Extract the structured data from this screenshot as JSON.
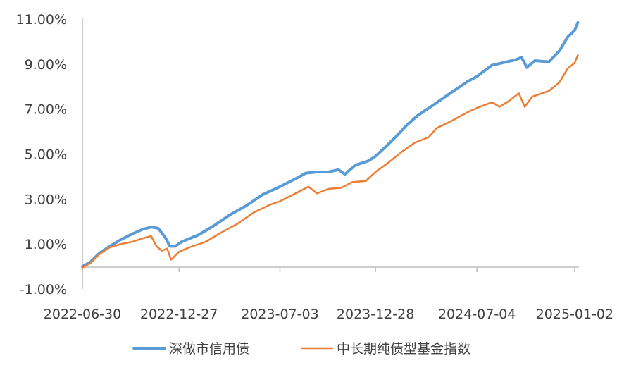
{
  "chart_data": {
    "type": "line",
    "title": "",
    "xlabel": "",
    "ylabel": "",
    "x_tick_labels": [
      "2022-06-30",
      "2022-12-27",
      "2023-07-03",
      "2023-12-28",
      "2024-07-04",
      "2025-01-02"
    ],
    "y_tick_labels": [
      "11.00%",
      "9.00%",
      "7.00%",
      "5.00%",
      "3.00%",
      "1.00%",
      "-1.00%"
    ],
    "y_ticks": [
      11,
      9,
      7,
      5,
      3,
      1,
      -1
    ],
    "ylim": [
      -1,
      11
    ],
    "xlim": [
      "2022-06-30",
      "2025-01-10"
    ],
    "grid": false,
    "legend_position": "bottom",
    "series": [
      {
        "name": "深做市信用债",
        "color": "#5b9bd5",
        "points": [
          [
            "2022-06-30",
            0.0
          ],
          [
            "2022-07-15",
            0.2
          ],
          [
            "2022-08-01",
            0.6
          ],
          [
            "2022-08-20",
            0.9
          ],
          [
            "2022-09-10",
            1.2
          ],
          [
            "2022-10-01",
            1.45
          ],
          [
            "2022-10-20",
            1.65
          ],
          [
            "2022-11-05",
            1.75
          ],
          [
            "2022-11-18",
            1.7
          ],
          [
            "2022-12-01",
            1.3
          ],
          [
            "2022-12-10",
            0.9
          ],
          [
            "2022-12-20",
            0.9
          ],
          [
            "2023-01-01",
            1.1
          ],
          [
            "2023-02-01",
            1.4
          ],
          [
            "2023-03-01",
            1.8
          ],
          [
            "2023-04-01",
            2.3
          ],
          [
            "2023-05-01",
            2.7
          ],
          [
            "2023-06-01",
            3.2
          ],
          [
            "2023-07-03",
            3.55
          ],
          [
            "2023-08-01",
            3.9
          ],
          [
            "2023-08-20",
            4.15
          ],
          [
            "2023-09-10",
            4.2
          ],
          [
            "2023-10-01",
            4.2
          ],
          [
            "2023-10-20",
            4.3
          ],
          [
            "2023-11-01",
            4.1
          ],
          [
            "2023-11-20",
            4.5
          ],
          [
            "2023-12-15",
            4.7
          ],
          [
            "2023-12-28",
            4.9
          ],
          [
            "2024-01-15",
            5.3
          ],
          [
            "2024-02-05",
            5.8
          ],
          [
            "2024-02-25",
            6.3
          ],
          [
            "2024-03-15",
            6.7
          ],
          [
            "2024-04-15",
            7.2
          ],
          [
            "2024-05-15",
            7.7
          ],
          [
            "2024-06-15",
            8.2
          ],
          [
            "2024-07-04",
            8.45
          ],
          [
            "2024-08-01",
            8.95
          ],
          [
            "2024-08-20",
            9.05
          ],
          [
            "2024-09-15",
            9.2
          ],
          [
            "2024-09-25",
            9.3
          ],
          [
            "2024-10-05",
            8.85
          ],
          [
            "2024-10-20",
            9.15
          ],
          [
            "2024-11-15",
            9.1
          ],
          [
            "2024-12-05",
            9.6
          ],
          [
            "2024-12-20",
            10.2
          ],
          [
            "2025-01-02",
            10.5
          ],
          [
            "2025-01-08",
            10.85
          ]
        ]
      },
      {
        "name": "中长期纯债型基金指数",
        "color": "#ed7d31",
        "points": [
          [
            "2022-06-30",
            -0.05
          ],
          [
            "2022-07-15",
            0.15
          ],
          [
            "2022-08-01",
            0.55
          ],
          [
            "2022-08-20",
            0.85
          ],
          [
            "2022-09-10",
            1.0
          ],
          [
            "2022-10-01",
            1.1
          ],
          [
            "2022-10-20",
            1.25
          ],
          [
            "2022-11-05",
            1.35
          ],
          [
            "2022-11-15",
            0.9
          ],
          [
            "2022-11-25",
            0.7
          ],
          [
            "2022-12-05",
            0.8
          ],
          [
            "2022-12-12",
            0.3
          ],
          [
            "2022-12-27",
            0.65
          ],
          [
            "2023-01-15",
            0.85
          ],
          [
            "2023-02-15",
            1.1
          ],
          [
            "2023-03-15",
            1.5
          ],
          [
            "2023-04-15",
            1.9
          ],
          [
            "2023-05-15",
            2.4
          ],
          [
            "2023-06-15",
            2.75
          ],
          [
            "2023-07-03",
            2.9
          ],
          [
            "2023-08-01",
            3.25
          ],
          [
            "2023-08-25",
            3.55
          ],
          [
            "2023-09-10",
            3.25
          ],
          [
            "2023-10-01",
            3.45
          ],
          [
            "2023-10-25",
            3.5
          ],
          [
            "2023-11-15",
            3.75
          ],
          [
            "2023-12-10",
            3.8
          ],
          [
            "2023-12-28",
            4.2
          ],
          [
            "2024-01-20",
            4.6
          ],
          [
            "2024-02-15",
            5.1
          ],
          [
            "2024-03-10",
            5.5
          ],
          [
            "2024-04-05",
            5.75
          ],
          [
            "2024-04-20",
            6.15
          ],
          [
            "2024-05-20",
            6.5
          ],
          [
            "2024-06-20",
            6.9
          ],
          [
            "2024-07-04",
            7.05
          ],
          [
            "2024-08-01",
            7.3
          ],
          [
            "2024-08-15",
            7.1
          ],
          [
            "2024-09-01",
            7.35
          ],
          [
            "2024-09-20",
            7.7
          ],
          [
            "2024-10-01",
            7.1
          ],
          [
            "2024-10-15",
            7.55
          ],
          [
            "2024-11-15",
            7.8
          ],
          [
            "2024-12-05",
            8.2
          ],
          [
            "2024-12-20",
            8.8
          ],
          [
            "2025-01-02",
            9.05
          ],
          [
            "2025-01-08",
            9.4
          ]
        ]
      }
    ]
  }
}
